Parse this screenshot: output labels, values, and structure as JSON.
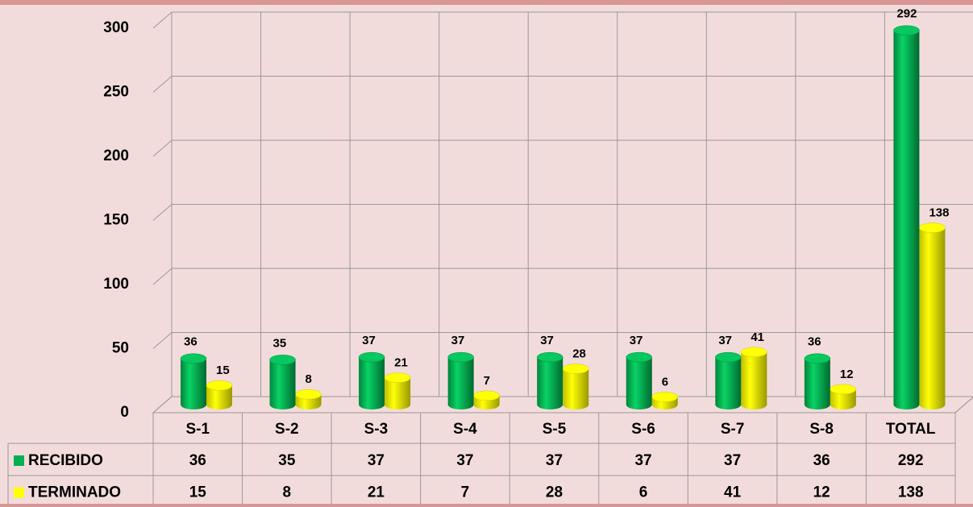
{
  "chart_data": {
    "type": "bar3d",
    "categories": [
      "S-1",
      "S-2",
      "S-3",
      "S-4",
      "S-5",
      "S-6",
      "S-7",
      "S-8",
      "TOTAL"
    ],
    "series": [
      {
        "name": "RECIBIDO",
        "color": "#00b050",
        "values": [
          36,
          35,
          37,
          37,
          37,
          37,
          37,
          36,
          292
        ]
      },
      {
        "name": "TERMINADO",
        "color": "#ffff00",
        "values": [
          15,
          8,
          21,
          7,
          28,
          6,
          41,
          12,
          138
        ]
      }
    ],
    "ylim": [
      0,
      300
    ],
    "yticks": [
      0,
      50,
      100,
      150,
      200,
      250,
      300
    ],
    "grid": true,
    "data_table": true
  }
}
